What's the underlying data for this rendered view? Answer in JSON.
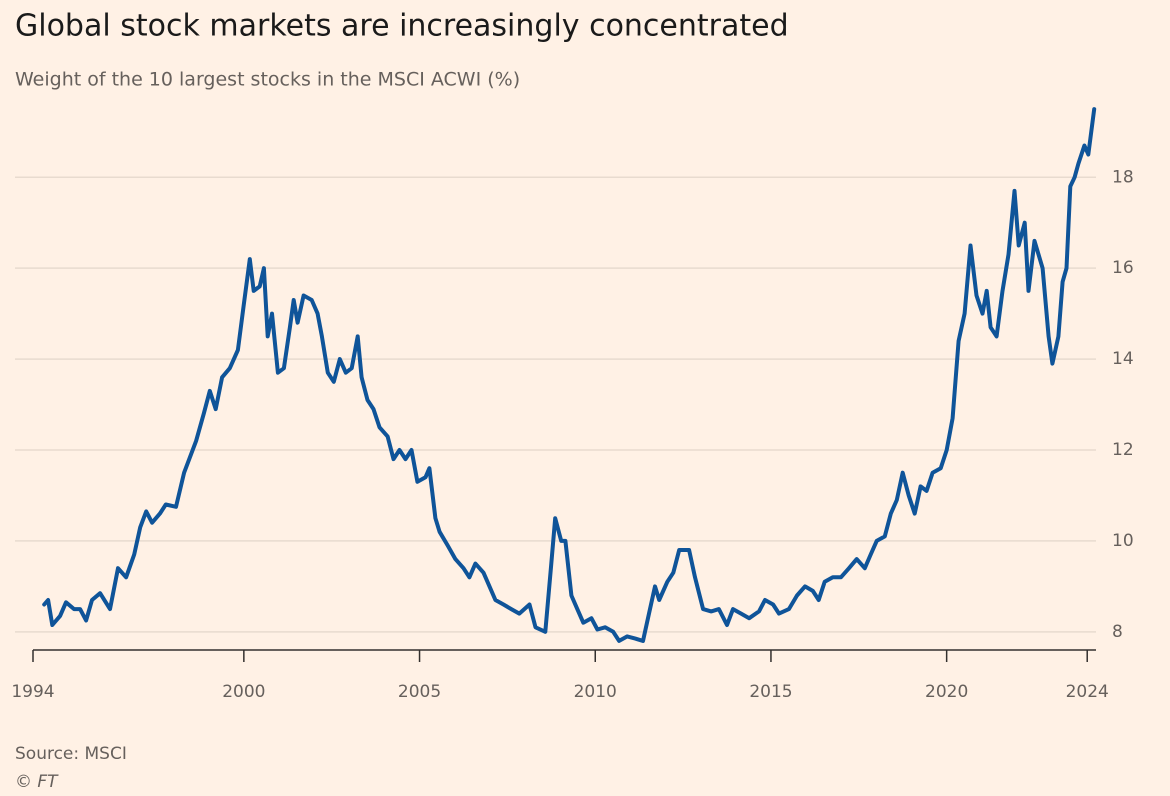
{
  "chart_data": {
    "type": "line",
    "title": "Global stock markets are increasingly concentrated",
    "subtitle": "Weight of the 10 largest stocks in the MSCI ACWI (%)",
    "source": "Source: MSCI",
    "credit": "© FT",
    "color": "#0f5499",
    "grid": true,
    "xlim": [
      1994,
      2024.25
    ],
    "xticks": [
      1994,
      2000,
      2005,
      2010,
      2015,
      2020,
      2024
    ],
    "ylim": [
      7.6,
      19.7
    ],
    "yticks": [
      8,
      10,
      12,
      14,
      16,
      18
    ],
    "x": [
      1994.32,
      1994.43,
      1994.55,
      1994.77,
      1994.94,
      1995.17,
      1995.34,
      1995.51,
      1995.68,
      1995.91,
      1996.19,
      1996.42,
      1996.65,
      1996.88,
      1997.05,
      1997.22,
      1997.39,
      1997.61,
      1997.78,
      1998.07,
      1998.3,
      1998.64,
      1998.86,
      1999.03,
      1999.2,
      1999.38,
      1999.6,
      1999.83,
      2000.0,
      2000.17,
      2000.28,
      2000.45,
      2000.57,
      2000.68,
      2000.8,
      2000.97,
      2001.14,
      2001.31,
      2001.42,
      2001.53,
      2001.7,
      2001.93,
      2002.1,
      2002.22,
      2002.39,
      2002.56,
      2002.73,
      2002.9,
      2003.07,
      2003.24,
      2003.35,
      2003.52,
      2003.69,
      2003.86,
      2004.09,
      2004.26,
      2004.43,
      2004.6,
      2004.77,
      2004.94,
      2005.17,
      2005.28,
      2005.45,
      2005.57,
      2005.8,
      2006.02,
      2006.25,
      2006.42,
      2006.59,
      2006.82,
      2006.99,
      2007.16,
      2007.39,
      2007.61,
      2007.84,
      2008.13,
      2008.3,
      2008.58,
      2008.75,
      2008.86,
      2009.03,
      2009.15,
      2009.32,
      2009.49,
      2009.66,
      2009.89,
      2010.06,
      2010.28,
      2010.51,
      2010.68,
      2010.91,
      2011.14,
      2011.36,
      2011.53,
      2011.7,
      2011.82,
      2012.05,
      2012.22,
      2012.39,
      2012.67,
      2012.84,
      2013.07,
      2013.3,
      2013.52,
      2013.75,
      2013.92,
      2014.15,
      2014.38,
      2014.66,
      2014.83,
      2015.06,
      2015.23,
      2015.51,
      2015.74,
      2015.97,
      2016.19,
      2016.36,
      2016.53,
      2016.76,
      2016.99,
      2017.22,
      2017.44,
      2017.67,
      2017.84,
      2018.01,
      2018.24,
      2018.41,
      2018.58,
      2018.75,
      2018.92,
      2019.09,
      2019.26,
      2019.43,
      2019.6,
      2019.83,
      2020.0,
      2020.17,
      2020.34,
      2020.51,
      2020.68,
      2020.85,
      2021.02,
      2021.14,
      2021.25,
      2021.42,
      2021.59,
      2021.76,
      2021.93,
      2022.05,
      2022.22,
      2022.33,
      2022.5,
      2022.73,
      2022.9,
      2023.01,
      2023.18,
      2023.3,
      2023.41,
      2023.52,
      2023.64,
      2023.75,
      2023.92,
      2024.03,
      2024.2
    ],
    "values": [
      8.6,
      8.7,
      8.15,
      8.35,
      8.65,
      8.5,
      8.5,
      8.25,
      8.7,
      8.85,
      8.5,
      9.4,
      9.2,
      9.7,
      10.3,
      10.65,
      10.4,
      10.6,
      10.8,
      10.75,
      11.5,
      12.2,
      12.8,
      13.3,
      12.9,
      13.6,
      13.8,
      14.2,
      15.2,
      16.2,
      15.5,
      15.6,
      16.0,
      14.5,
      15.0,
      13.7,
      13.8,
      14.7,
      15.3,
      14.8,
      15.4,
      15.3,
      15.0,
      14.5,
      13.7,
      13.5,
      14.0,
      13.7,
      13.8,
      14.5,
      13.6,
      13.1,
      12.9,
      12.5,
      12.3,
      11.8,
      12.0,
      11.8,
      12.0,
      11.3,
      11.4,
      11.6,
      10.5,
      10.2,
      9.9,
      9.6,
      9.4,
      9.2,
      9.5,
      9.3,
      9.0,
      8.7,
      8.6,
      8.5,
      8.4,
      8.6,
      8.1,
      8.0,
      9.5,
      10.5,
      10.0,
      10.0,
      8.8,
      8.5,
      8.2,
      8.3,
      8.05,
      8.1,
      8.0,
      7.8,
      7.9,
      7.85,
      7.8,
      8.4,
      9.0,
      8.7,
      9.1,
      9.3,
      9.8,
      9.8,
      9.2,
      8.5,
      8.45,
      8.5,
      8.15,
      8.5,
      8.4,
      8.3,
      8.45,
      8.7,
      8.6,
      8.4,
      8.5,
      8.8,
      9.0,
      8.9,
      8.7,
      9.1,
      9.2,
      9.2,
      9.4,
      9.6,
      9.4,
      9.7,
      10.0,
      10.1,
      10.6,
      10.9,
      11.5,
      11.0,
      10.6,
      11.2,
      11.1,
      11.5,
      11.6,
      12.0,
      12.7,
      14.4,
      15.0,
      16.5,
      15.4,
      15.0,
      15.5,
      14.7,
      14.5,
      15.5,
      16.3,
      17.7,
      16.5,
      17.0,
      15.5,
      16.6,
      16.0,
      14.5,
      13.9,
      14.5,
      15.7,
      16.0,
      17.8,
      18.0,
      18.3,
      18.7,
      18.5,
      19.5
    ]
  }
}
